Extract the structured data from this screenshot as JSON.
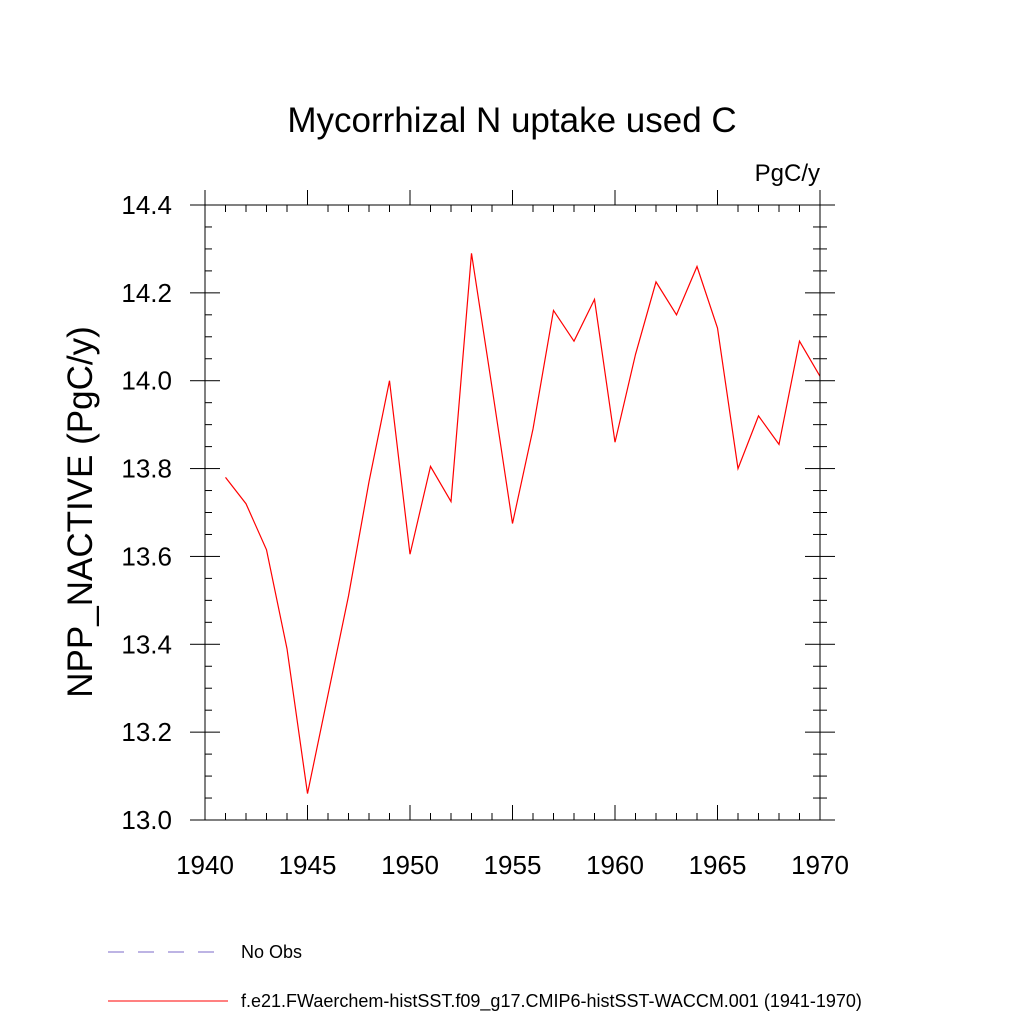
{
  "chart_data": {
    "type": "line",
    "title": "Mycorrhizal N uptake used C",
    "units": "PgC/y",
    "ylabel": "NPP_NACTIVE  (PgC/y)",
    "xlabel": "",
    "xlim": [
      1940,
      1970
    ],
    "ylim": [
      13.0,
      14.4
    ],
    "xticks": [
      "1940",
      "1945",
      "1950",
      "1955",
      "1960",
      "1965",
      "1970"
    ],
    "yticks": [
      "13.0",
      "13.2",
      "13.4",
      "13.6",
      "13.8",
      "14.0",
      "14.2",
      "14.4"
    ],
    "grid": false,
    "legend_position": "bottom",
    "legend": [
      {
        "label": "No Obs",
        "color": "#7b68c8",
        "style": "dashed"
      },
      {
        "label": "f.e21.FWaerchem-histSST.f09_g17.CMIP6-histSST-WACCM.001 (1941-1970)",
        "color": "#ff0000",
        "style": "solid"
      }
    ],
    "series": [
      {
        "color": "#ff0000",
        "x": [
          1941,
          1942,
          1943,
          1944,
          1945,
          1946,
          1947,
          1948,
          1949,
          1950,
          1951,
          1952,
          1953,
          1954,
          1955,
          1956,
          1957,
          1958,
          1959,
          1960,
          1961,
          1962,
          1963,
          1964,
          1965,
          1966,
          1967,
          1968,
          1969,
          1970
        ],
        "values": [
          13.78,
          13.72,
          13.615,
          13.39,
          13.06,
          13.285,
          13.51,
          13.77,
          14.0,
          13.605,
          13.805,
          13.725,
          14.29,
          13.985,
          13.675,
          13.89,
          14.16,
          14.09,
          14.185,
          13.86,
          14.06,
          14.225,
          14.15,
          14.26,
          14.12,
          13.8,
          13.92,
          13.855,
          14.09,
          14.01
        ]
      }
    ]
  }
}
